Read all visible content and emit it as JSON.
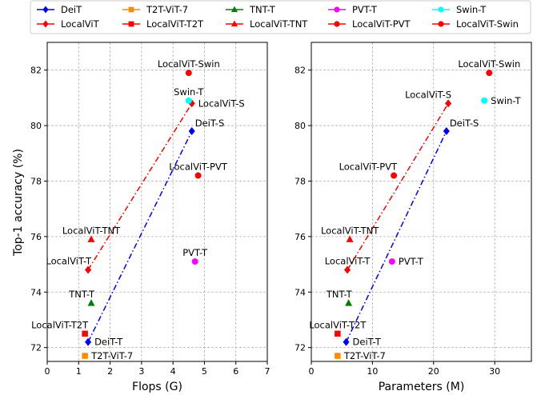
{
  "chart_data": {
    "type": "scatter",
    "ylabel": "Top-1 accuracy (%)",
    "ylim": [
      71.5,
      83
    ],
    "yticks": [
      72,
      74,
      76,
      78,
      80,
      82
    ],
    "grid": true,
    "legend": {
      "placement": "top",
      "entries": [
        {
          "name": "DeiT",
          "color": "#0000ff",
          "marker": "diamond"
        },
        {
          "name": "LocalViT",
          "color": "#ff0000",
          "marker": "diamond"
        },
        {
          "name": "T2T-ViT-7",
          "color": "#ff8c00",
          "marker": "square"
        },
        {
          "name": "LocalViT-T2T",
          "color": "#ff0000",
          "marker": "square"
        },
        {
          "name": "TNT-T",
          "color": "#008000",
          "marker": "triangle"
        },
        {
          "name": "LocalViT-TNT",
          "color": "#ff0000",
          "marker": "triangle"
        },
        {
          "name": "PVT-T",
          "color": "#ff00ff",
          "marker": "circle"
        },
        {
          "name": "LocalViT-PVT",
          "color": "#ff0000",
          "marker": "circle"
        },
        {
          "name": "Swin-T",
          "color": "#00ffff",
          "marker": "circle"
        },
        {
          "name": "LocalViT-Swin",
          "color": "#ff0000",
          "marker": "circle"
        }
      ]
    },
    "panels": [
      {
        "xlabel": "Flops (G)",
        "xlim": [
          0,
          7
        ],
        "xticks": [
          0,
          1,
          2,
          3,
          4,
          5,
          6,
          7
        ],
        "points": [
          {
            "label": "DeiT-T",
            "x": 1.3,
            "y": 72.2,
            "color": "#0000ff",
            "marker": "diamond",
            "anchor": "right"
          },
          {
            "label": "DeiT-S",
            "x": 4.6,
            "y": 79.8,
            "color": "#0000ff",
            "marker": "diamond",
            "anchor": "above-right"
          },
          {
            "label": "LocalViT-T",
            "x": 1.3,
            "y": 74.8,
            "color": "#ff0000",
            "marker": "diamond",
            "anchor": "above-left"
          },
          {
            "label": "LocalViT-S",
            "x": 4.6,
            "y": 80.8,
            "color": "#ff0000",
            "marker": "diamond",
            "anchor": "right"
          },
          {
            "label": "T2T-ViT-7",
            "x": 1.2,
            "y": 71.7,
            "color": "#ff8c00",
            "marker": "square",
            "anchor": "right"
          },
          {
            "label": "LocalViT-T2T",
            "x": 1.2,
            "y": 72.5,
            "color": "#ff0000",
            "marker": "square",
            "anchor": "above-left"
          },
          {
            "label": "TNT-T",
            "x": 1.4,
            "y": 73.6,
            "color": "#008000",
            "marker": "triangle",
            "anchor": "above-left"
          },
          {
            "label": "LocalViT-TNT",
            "x": 1.4,
            "y": 75.9,
            "color": "#ff0000",
            "marker": "triangle",
            "anchor": "above"
          },
          {
            "label": "PVT-T",
            "x": 4.7,
            "y": 75.1,
            "color": "#ff00ff",
            "marker": "circle",
            "anchor": "above"
          },
          {
            "label": "LocalViT-PVT",
            "x": 4.8,
            "y": 78.2,
            "color": "#ff0000",
            "marker": "circle",
            "anchor": "above"
          },
          {
            "label": "Swin-T",
            "x": 4.5,
            "y": 80.9,
            "color": "#00ffff",
            "marker": "circle",
            "anchor": "above"
          },
          {
            "label": "LocalViT-Swin",
            "x": 4.5,
            "y": 81.9,
            "color": "#ff0000",
            "marker": "circle",
            "anchor": "above"
          }
        ],
        "lines": [
          {
            "from": [
              1.3,
              72.2
            ],
            "to": [
              4.6,
              79.8
            ],
            "color": "#0000ff"
          },
          {
            "from": [
              1.3,
              74.8
            ],
            "to": [
              4.6,
              80.8
            ],
            "color": "#ff0000"
          }
        ]
      },
      {
        "xlabel": "Parameters (M)",
        "xlim": [
          0,
          36
        ],
        "xticks": [
          0,
          10,
          20,
          30
        ],
        "points": [
          {
            "label": "DeiT-T",
            "x": 5.7,
            "y": 72.2,
            "color": "#0000ff",
            "marker": "diamond",
            "anchor": "right"
          },
          {
            "label": "DeiT-S",
            "x": 22.1,
            "y": 79.8,
            "color": "#0000ff",
            "marker": "diamond",
            "anchor": "above-right"
          },
          {
            "label": "LocalViT-T",
            "x": 5.9,
            "y": 74.8,
            "color": "#ff0000",
            "marker": "diamond",
            "anchor": "above"
          },
          {
            "label": "LocalViT-S",
            "x": 22.4,
            "y": 80.8,
            "color": "#ff0000",
            "marker": "diamond",
            "anchor": "above-left"
          },
          {
            "label": "T2T-ViT-7",
            "x": 4.3,
            "y": 71.7,
            "color": "#ff8c00",
            "marker": "square",
            "anchor": "right"
          },
          {
            "label": "LocalViT-T2T",
            "x": 4.3,
            "y": 72.5,
            "color": "#ff0000",
            "marker": "square",
            "anchor": "above"
          },
          {
            "label": "TNT-T",
            "x": 6.1,
            "y": 73.6,
            "color": "#008000",
            "marker": "triangle",
            "anchor": "above-left"
          },
          {
            "label": "LocalViT-TNT",
            "x": 6.3,
            "y": 75.9,
            "color": "#ff0000",
            "marker": "triangle",
            "anchor": "above"
          },
          {
            "label": "PVT-T",
            "x": 13.2,
            "y": 75.1,
            "color": "#ff00ff",
            "marker": "circle",
            "anchor": "right"
          },
          {
            "label": "LocalViT-PVT",
            "x": 13.5,
            "y": 78.2,
            "color": "#ff0000",
            "marker": "circle",
            "anchor": "above-left"
          },
          {
            "label": "Swin-T",
            "x": 28.3,
            "y": 80.9,
            "color": "#00ffff",
            "marker": "circle",
            "anchor": "right"
          },
          {
            "label": "LocalViT-Swin",
            "x": 29.1,
            "y": 81.9,
            "color": "#ff0000",
            "marker": "circle",
            "anchor": "above"
          }
        ],
        "lines": [
          {
            "from": [
              5.7,
              72.2
            ],
            "to": [
              22.1,
              79.8
            ],
            "color": "#0000ff"
          },
          {
            "from": [
              5.9,
              74.8
            ],
            "to": [
              22.4,
              80.8
            ],
            "color": "#ff0000"
          }
        ]
      }
    ]
  }
}
